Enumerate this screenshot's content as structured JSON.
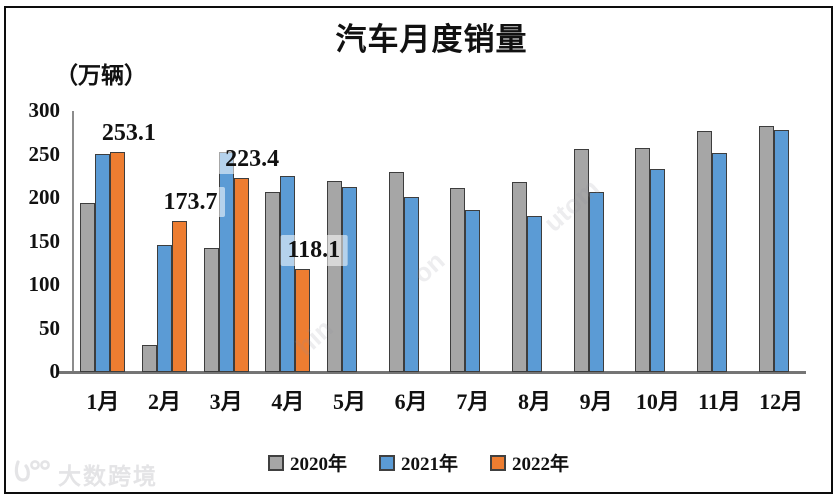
{
  "title": "汽车月度销量",
  "unit_label": "（万辆）",
  "chart_data": {
    "type": "bar",
    "categories": [
      "1月",
      "2月",
      "3月",
      "4月",
      "5月",
      "6月",
      "7月",
      "8月",
      "9月",
      "10月",
      "11月",
      "12月"
    ],
    "series": [
      {
        "name": "2020年",
        "color": "#A6A6A6",
        "values": [
          194.1,
          31.0,
          143.0,
          207.0,
          219.4,
          230.0,
          211.2,
          218.6,
          256.5,
          257.3,
          277.0,
          283.1
        ]
      },
      {
        "name": "2021年",
        "color": "#5B9BD5",
        "values": [
          250.3,
          145.5,
          252.6,
          225.2,
          212.8,
          201.5,
          186.4,
          179.9,
          206.7,
          233.3,
          252.2,
          278.6
        ]
      },
      {
        "name": "2022年",
        "color": "#ED7D31",
        "values": [
          253.1,
          173.7,
          223.4,
          118.1,
          null,
          null,
          null,
          null,
          null,
          null,
          null,
          null
        ]
      }
    ],
    "data_labels": [
      {
        "text": "253.1",
        "month": 0
      },
      {
        "text": "173.7",
        "month": 1
      },
      {
        "text": "223.4",
        "month": 2
      },
      {
        "text": "118.1",
        "month": 3
      }
    ],
    "y_ticks": [
      0,
      50,
      100,
      150,
      200,
      250,
      300
    ],
    "ylim": [
      0,
      300
    ],
    "grid": false,
    "legend_position": "bottom",
    "title": "汽车月度销量",
    "ylabel": "（万辆）"
  },
  "axis_colors": {
    "y_axis": "#8c8c8c",
    "x_axis": "#757575",
    "bar_outline": "#3d3d3d"
  },
  "watermark": {
    "brand": "大数跨境"
  },
  "watermark_fragments": [
    "on",
    "utom",
    "hin"
  ]
}
